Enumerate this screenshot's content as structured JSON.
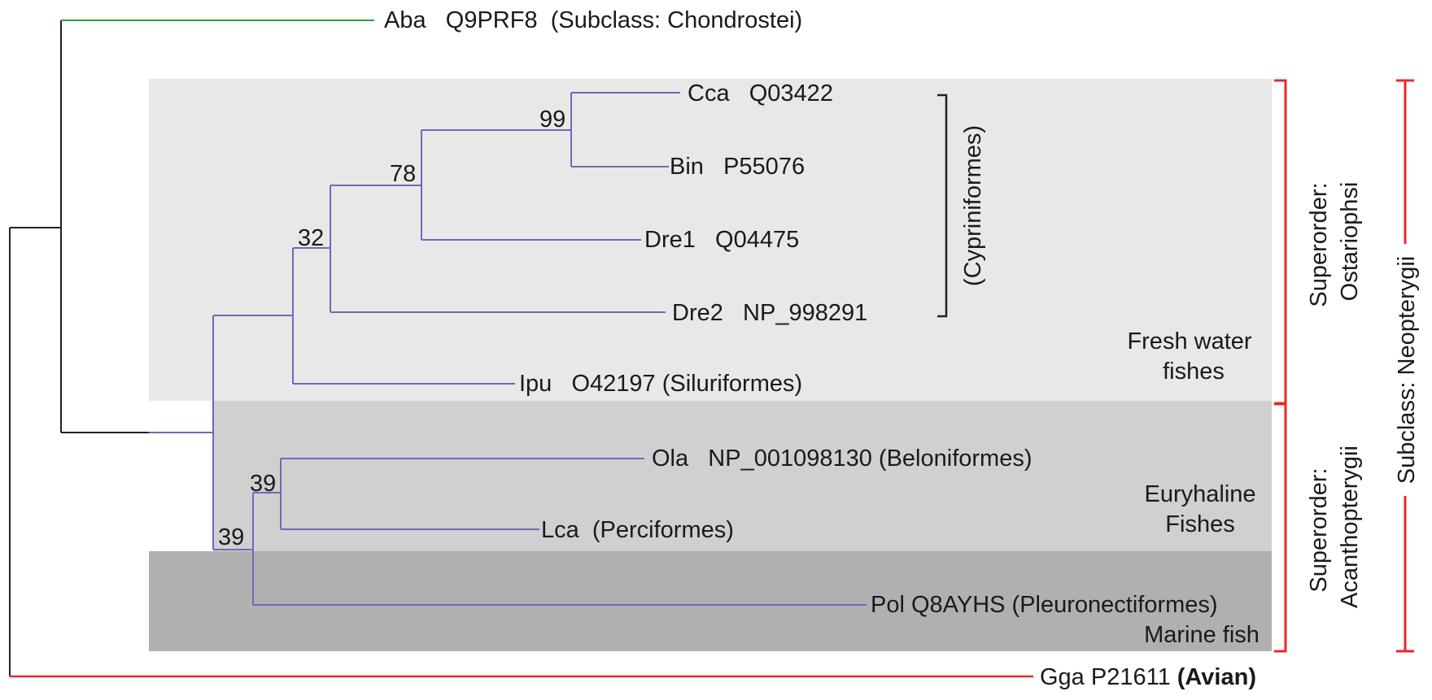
{
  "tree": {
    "colors": {
      "outgroup_branch": "#2ca02c",
      "teleost_branch": "#6b6bb8",
      "root_branch": "#222222",
      "avian_branch": "#e8292b",
      "bracket_red": "#e8292b",
      "bracket_black": "#222222",
      "region_fresh": "#e8e8e8",
      "region_eury": "#d0d0d0",
      "region_marine": "#b0b0b0"
    },
    "leaves": {
      "aba": "Aba   Q9PRF8  (Subclass: Chondrostei)",
      "cca": "Cca   Q03422",
      "bin": "Bin   P55076",
      "dre1": "Dre1   Q04475",
      "dre2": "Dre2   NP_998291",
      "ipu": "Ipu   O42197 (Siluriformes)",
      "ola": "Ola   NP_001098130 (Beloniformes)",
      "lca": "Lca  (Perciformes)",
      "pol": "Pol Q8AYHS (Pleuronectiformes)",
      "gga_id": "Gga P21611 ",
      "gga_group": "(Avian)"
    },
    "support": {
      "cca_bin": "99",
      "cca_dre1": "78",
      "cyprin_dre2": "32",
      "ola_lca": "39",
      "acanth": "39"
    },
    "groups": {
      "cypriniformes": "(Cypriniformes)",
      "fresh_1": "Fresh water",
      "fresh_2": "fishes",
      "eury_1": "Euryhaline",
      "eury_2": "Fishes",
      "marine": "Marine fish",
      "ostariophysi_1": "Superorder:",
      "ostariophysi_2": "Ostariophsi",
      "acanth_1": "Superorder:",
      "acanth_2": "Acanthopterygii",
      "neopterygii": "Subclass: Neopterygii"
    }
  }
}
